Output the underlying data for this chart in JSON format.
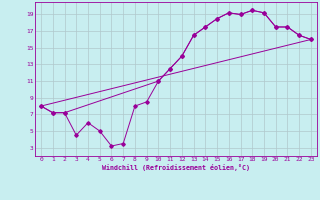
{
  "xlabel": "Windchill (Refroidissement éolien,°C)",
  "ylabel": "",
  "background_color": "#c8eef0",
  "grid_color": "#b0c8cc",
  "line_color": "#990099",
  "xlim": [
    -0.5,
    23.5
  ],
  "ylim": [
    2,
    20.5
  ],
  "xticks": [
    0,
    1,
    2,
    3,
    4,
    5,
    6,
    7,
    8,
    9,
    10,
    11,
    12,
    13,
    14,
    15,
    16,
    17,
    18,
    19,
    20,
    21,
    22,
    23
  ],
  "yticks": [
    3,
    5,
    7,
    9,
    11,
    13,
    15,
    17,
    19
  ],
  "series": [
    {
      "x": [
        0,
        1,
        2,
        3,
        4,
        5,
        6,
        7,
        8,
        9,
        10,
        11,
        12,
        13,
        14,
        15,
        16,
        17,
        18,
        19,
        20,
        21,
        22,
        23
      ],
      "y": [
        8.0,
        7.2,
        7.2,
        4.5,
        6.0,
        5.0,
        3.2,
        3.5,
        8.0,
        8.5,
        11.0,
        12.5,
        14.0,
        16.5,
        17.5,
        18.5,
        19.2,
        19.0,
        19.5,
        19.2,
        17.5,
        17.5,
        16.5,
        16.0
      ]
    },
    {
      "x": [
        0,
        1,
        2,
        10,
        11,
        12,
        13,
        14,
        15,
        16,
        17,
        18,
        19,
        20,
        21,
        22,
        23
      ],
      "y": [
        8.0,
        7.2,
        7.2,
        11.0,
        12.5,
        14.0,
        16.5,
        17.5,
        18.5,
        19.2,
        19.0,
        19.5,
        19.2,
        17.5,
        17.5,
        16.5,
        16.0
      ]
    },
    {
      "x": [
        0,
        23
      ],
      "y": [
        8.0,
        16.0
      ]
    }
  ]
}
